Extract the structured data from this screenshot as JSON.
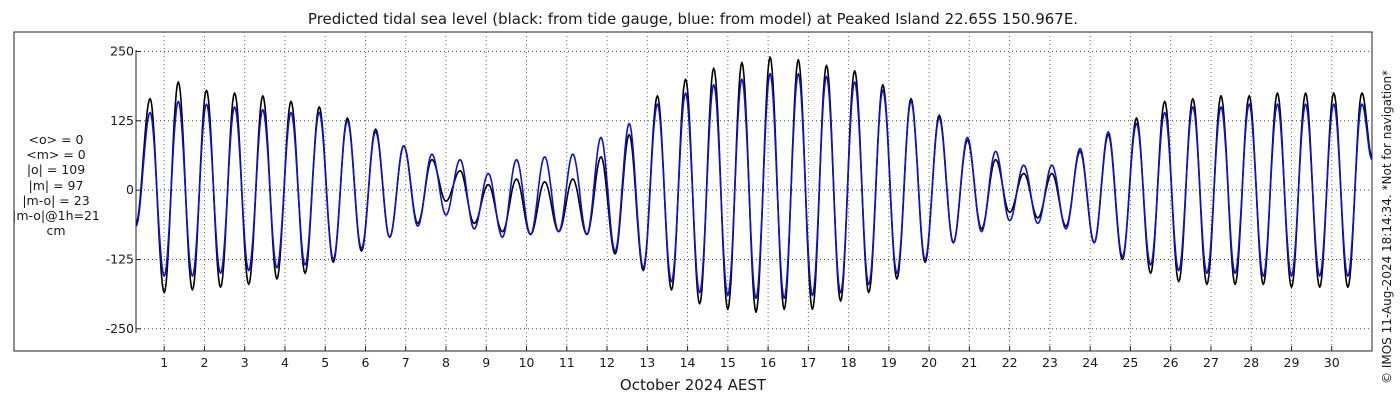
{
  "chart_data": {
    "type": "line",
    "title": "Predicted tidal sea level (black: from tide gauge, blue: from model) at Peaked Island 22.65S 150.967E.",
    "xlabel": "October 2024 AEST",
    "ylabel": "",
    "x_tick_labels": [
      "1",
      "2",
      "3",
      "4",
      "5",
      "6",
      "7",
      "8",
      "9",
      "10",
      "11",
      "12",
      "13",
      "14",
      "15",
      "16",
      "17",
      "18",
      "19",
      "20",
      "21",
      "22",
      "23",
      "24",
      "25",
      "26",
      "27",
      "28",
      "29",
      "30"
    ],
    "xlim": [
      0.3,
      31
    ],
    "y_ticks": [
      250,
      125,
      0,
      -125,
      -250
    ],
    "y_tick_labels": [
      "250",
      "125",
      "0",
      "-125",
      "-250"
    ],
    "ylim": [
      -290,
      285
    ],
    "grid": true,
    "stats": [
      "<o> = 0",
      "<m> = 0",
      "|o| = 109",
      "|m| = 97",
      "|m-o| = 23",
      "|m-o|@1h=21",
      "cm"
    ],
    "copyright": "© IMOS 11-Aug-2024 18:14:34. *Not for navigation*",
    "series": [
      {
        "color": "#000000",
        "x": [
          0.3,
          0.65,
          1.0,
          1.35,
          1.7,
          2.05,
          2.4,
          2.75,
          3.1,
          3.45,
          3.8,
          4.15,
          4.5,
          4.85,
          5.2,
          5.55,
          5.9,
          6.25,
          6.6,
          6.95,
          7.3,
          7.65,
          8.0,
          8.35,
          8.7,
          9.05,
          9.4,
          9.75,
          10.1,
          10.45,
          10.8,
          11.15,
          11.5,
          11.85,
          12.2,
          12.55,
          12.9,
          13.25,
          13.6,
          13.95,
          14.3,
          14.65,
          15.0,
          15.35,
          15.7,
          16.05,
          16.4,
          16.75,
          17.1,
          17.45,
          17.8,
          18.15,
          18.5,
          18.85,
          19.2,
          19.55,
          19.9,
          20.25,
          20.6,
          20.95,
          21.3,
          21.65,
          22.0,
          22.35,
          22.7,
          23.05,
          23.4,
          23.75,
          24.1,
          24.45,
          24.8,
          25.15,
          25.5,
          25.85,
          26.2,
          26.55,
          26.9,
          27.25,
          27.6,
          27.95,
          28.3,
          28.65,
          29.0,
          29.35,
          29.7,
          30.05,
          30.4,
          30.75,
          31.0
        ],
        "y": [
          -60,
          165,
          -185,
          195,
          -180,
          180,
          -175,
          175,
          -170,
          170,
          -160,
          160,
          -150,
          150,
          -130,
          130,
          -110,
          110,
          -85,
          80,
          -60,
          55,
          -20,
          35,
          -60,
          10,
          -75,
          20,
          -80,
          15,
          -75,
          20,
          -80,
          60,
          -115,
          100,
          -145,
          170,
          -180,
          200,
          -205,
          220,
          -215,
          230,
          -220,
          240,
          -215,
          235,
          -215,
          225,
          -200,
          215,
          -185,
          190,
          -160,
          165,
          -130,
          135,
          -95,
          90,
          -70,
          55,
          -40,
          30,
          -50,
          30,
          -65,
          70,
          -95,
          100,
          -125,
          130,
          -150,
          160,
          -165,
          165,
          -170,
          170,
          -170,
          170,
          -170,
          175,
          -175,
          175,
          -175,
          175,
          -175,
          175,
          60
        ]
      },
      {
        "color": "#1010d0",
        "x": [
          0.3,
          0.65,
          1.0,
          1.35,
          1.7,
          2.05,
          2.4,
          2.75,
          3.1,
          3.45,
          3.8,
          4.15,
          4.5,
          4.85,
          5.2,
          5.55,
          5.9,
          6.25,
          6.6,
          6.95,
          7.3,
          7.65,
          8.0,
          8.35,
          8.7,
          9.05,
          9.4,
          9.75,
          10.1,
          10.45,
          10.8,
          11.15,
          11.5,
          11.85,
          12.2,
          12.55,
          12.9,
          13.25,
          13.6,
          13.95,
          14.3,
          14.65,
          15.0,
          15.35,
          15.7,
          16.05,
          16.4,
          16.75,
          17.1,
          17.45,
          17.8,
          18.15,
          18.5,
          18.85,
          19.2,
          19.55,
          19.9,
          20.25,
          20.6,
          20.95,
          21.3,
          21.65,
          22.0,
          22.35,
          22.7,
          23.05,
          23.4,
          23.75,
          24.1,
          24.45,
          24.8,
          25.15,
          25.5,
          25.85,
          26.2,
          26.55,
          26.9,
          27.25,
          27.6,
          27.95,
          28.3,
          28.65,
          29.0,
          29.35,
          29.7,
          30.05,
          30.4,
          30.75,
          31.0
        ],
        "y": [
          -65,
          140,
          -155,
          160,
          -155,
          155,
          -150,
          150,
          -145,
          145,
          -140,
          140,
          -135,
          140,
          -125,
          125,
          -105,
          105,
          -85,
          80,
          -65,
          65,
          -45,
          55,
          -70,
          30,
          -85,
          55,
          -80,
          60,
          -75,
          65,
          -80,
          95,
          -110,
          120,
          -140,
          155,
          -165,
          175,
          -185,
          190,
          -190,
          200,
          -195,
          210,
          -195,
          210,
          -190,
          205,
          -185,
          195,
          -170,
          180,
          -150,
          160,
          -125,
          130,
          -95,
          95,
          -75,
          70,
          -55,
          45,
          -60,
          45,
          -70,
          75,
          -95,
          105,
          -120,
          120,
          -135,
          140,
          -145,
          150,
          -150,
          150,
          -150,
          155,
          -155,
          155,
          -155,
          155,
          -155,
          155,
          -155,
          155,
          55
        ]
      }
    ]
  }
}
